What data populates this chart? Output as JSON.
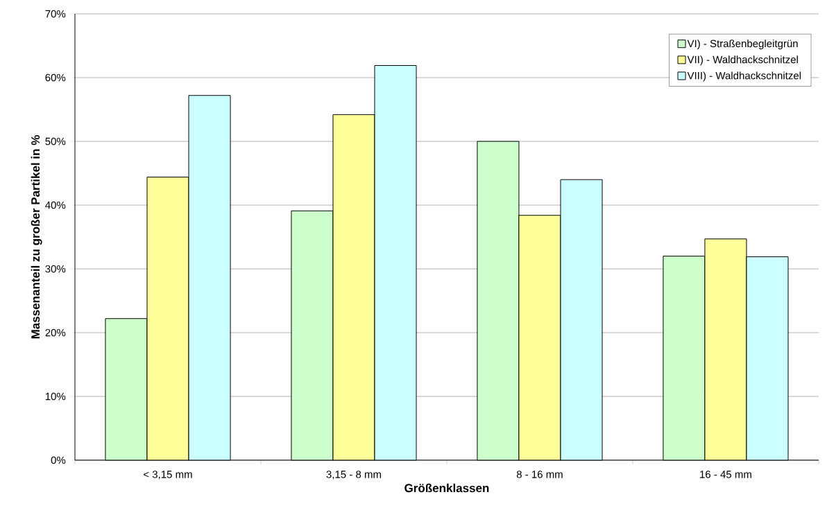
{
  "chart_data": {
    "type": "bar",
    "xlabel": "Größenklassen",
    "ylabel": "Massenanteil zu großer Partikel in %",
    "categories": [
      "< 3,15 mm",
      "3,15 - 8 mm",
      "8 - 16 mm",
      "16 - 45 mm"
    ],
    "series": [
      {
        "name": "VI) - Straßenbegleitgrün",
        "color": "#ccffcc",
        "values": [
          22.2,
          39.1,
          50.0,
          32.0
        ]
      },
      {
        "name": "VII) - Waldhackschnitzel",
        "color": "#ffff99",
        "values": [
          44.4,
          54.2,
          38.4,
          34.7
        ]
      },
      {
        "name": "VIII) - Waldhackschnitzel",
        "color": "#ccffff",
        "values": [
          57.2,
          61.9,
          44.0,
          31.9
        ]
      }
    ],
    "ylim": [
      0,
      70
    ],
    "yticks": [
      {
        "value": 0,
        "label": "0%"
      },
      {
        "value": 10,
        "label": "10%"
      },
      {
        "value": 20,
        "label": "20%"
      },
      {
        "value": 30,
        "label": "30%"
      },
      {
        "value": 40,
        "label": "40%"
      },
      {
        "value": 50,
        "label": "50%"
      },
      {
        "value": 60,
        "label": "60%"
      },
      {
        "value": 70,
        "label": "70%"
      }
    ],
    "grid": "y",
    "legend": "top right"
  }
}
